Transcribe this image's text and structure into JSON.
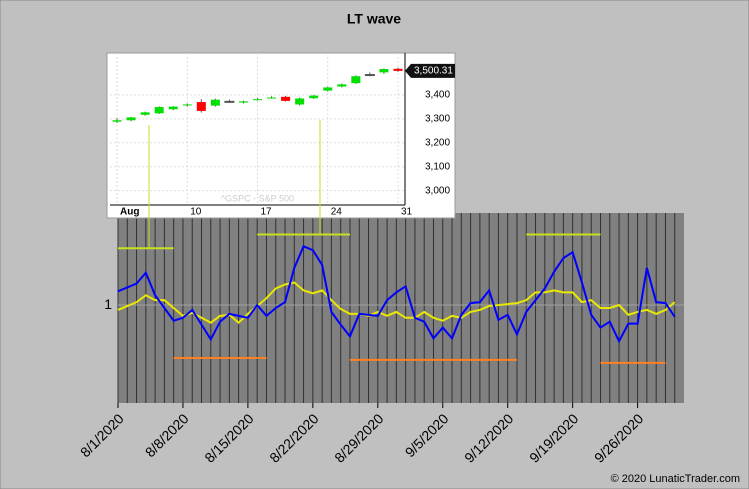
{
  "chart_data": [
    {
      "type": "line",
      "title": "LT wave",
      "x": [
        "8/1/2020",
        "8/2/2020",
        "8/3/2020",
        "8/4/2020",
        "8/5/2020",
        "8/6/2020",
        "8/7/2020",
        "8/8/2020",
        "8/9/2020",
        "8/10/2020",
        "8/11/2020",
        "8/12/2020",
        "8/13/2020",
        "8/14/2020",
        "8/15/2020",
        "8/16/2020",
        "8/17/2020",
        "8/18/2020",
        "8/19/2020",
        "8/20/2020",
        "8/21/2020",
        "8/22/2020",
        "8/23/2020",
        "8/24/2020",
        "8/25/2020",
        "8/26/2020",
        "8/27/2020",
        "8/28/2020",
        "8/29/2020",
        "8/30/2020",
        "8/31/2020",
        "9/1/2020",
        "9/2/2020",
        "9/3/2020",
        "9/4/2020",
        "9/5/2020",
        "9/6/2020",
        "9/7/2020",
        "9/8/2020",
        "9/9/2020",
        "9/10/2020",
        "9/11/2020",
        "9/12/2020",
        "9/13/2020",
        "9/14/2020",
        "9/15/2020",
        "9/16/2020",
        "9/17/2020",
        "9/18/2020",
        "9/19/2020",
        "9/20/2020",
        "9/21/2020",
        "9/22/2020",
        "9/23/2020",
        "9/24/2020",
        "9/25/2020",
        "9/26/2020",
        "9/27/2020",
        "9/28/2020",
        "9/29/2020",
        "9/30/2020"
      ],
      "series": [
        {
          "color": "#0000ff",
          "values": [
            1.14,
            1.18,
            1.22,
            1.33,
            1.1,
            0.97,
            0.84,
            0.87,
            0.95,
            0.8,
            0.65,
            0.83,
            0.91,
            0.89,
            0.87,
            1.0,
            0.89,
            0.97,
            1.03,
            1.38,
            1.6,
            1.56,
            1.41,
            0.93,
            0.8,
            0.68,
            0.91,
            0.9,
            0.89,
            1.05,
            1.13,
            1.19,
            0.87,
            0.83,
            0.66,
            0.77,
            0.66,
            0.9,
            1.02,
            1.03,
            1.15,
            0.85,
            0.9,
            0.7,
            0.93,
            1.05,
            1.17,
            1.34,
            1.48,
            1.54,
            1.23,
            0.9,
            0.77,
            0.83,
            0.63,
            0.81,
            0.81,
            1.38,
            1.03,
            1.02,
            0.88
          ]
        },
        {
          "color": "#e8e800",
          "values": [
            0.95,
            0.99,
            1.03,
            1.1,
            1.05,
            1.05,
            0.97,
            0.89,
            0.92,
            0.87,
            0.82,
            0.89,
            0.9,
            0.82,
            0.91,
            0.99,
            1.07,
            1.17,
            1.21,
            1.23,
            1.15,
            1.12,
            1.15,
            1.05,
            0.96,
            0.91,
            0.91,
            0.89,
            0.93,
            0.89,
            0.93,
            0.87,
            0.87,
            0.93,
            0.87,
            0.84,
            0.89,
            0.87,
            0.93,
            0.95,
            0.99,
            1.0,
            1.01,
            1.02,
            1.05,
            1.13,
            1.13,
            1.15,
            1.13,
            1.13,
            1.03,
            1.05,
            0.97,
            0.97,
            1.0,
            0.9,
            0.93,
            0.95,
            0.91,
            0.95,
            1.03
          ]
        }
      ],
      "levels": [
        {
          "from": "8/1/2020",
          "to": "8/7/2020",
          "value": 1.58,
          "color": "#c8e020"
        },
        {
          "from": "8/16/2020",
          "to": "8/26/2020",
          "value": 1.72,
          "color": "#c8e020"
        },
        {
          "from": "9/14/2020",
          "to": "9/22/2020",
          "value": 1.72,
          "color": "#c8e020"
        },
        {
          "from": "8/7/2020",
          "to": "8/17/2020",
          "value": 0.46,
          "color": "#ff8020"
        },
        {
          "from": "8/26/2020",
          "to": "9/13/2020",
          "value": 0.44,
          "color": "#ff8020"
        },
        {
          "from": "9/22/2020",
          "to": "9/29/2020",
          "value": 0.41,
          "color": "#ff8020"
        }
      ],
      "xlim": [
        "8/1/2020",
        "10/1/2020"
      ],
      "xticks": [
        "8/1/2020",
        "8/8/2020",
        "8/15/2020",
        "8/22/2020",
        "8/29/2020",
        "9/5/2020",
        "9/12/2020",
        "9/19/2020",
        "9/26/2020"
      ],
      "ylim": [
        0,
        1.94
      ],
      "yticks": [
        1
      ],
      "grid": true,
      "credit": "© 2020 LunaticTrader.com"
    },
    {
      "type": "candlestick",
      "watermark": "^GSPC - S&P 500",
      "categories": [
        "Aug",
        null,
        null,
        null,
        null,
        "10",
        null,
        null,
        null,
        null,
        "17",
        null,
        null,
        null,
        null,
        "24",
        null,
        null,
        null,
        null,
        "31"
      ],
      "open": [
        3288,
        3294,
        3317,
        3323,
        3340,
        3356,
        3370,
        3355,
        3373,
        3368,
        3380,
        3387,
        3392,
        3360,
        3386,
        3418,
        3435,
        3449,
        3485,
        3494,
        3509
      ],
      "high": [
        3302,
        3308,
        3330,
        3352,
        3353,
        3364,
        3382,
        3384,
        3380,
        3376,
        3386,
        3394,
        3396,
        3389,
        3400,
        3434,
        3447,
        3482,
        3494,
        3510,
        3514
      ],
      "low": [
        3283,
        3290,
        3313,
        3320,
        3336,
        3352,
        3326,
        3351,
        3366,
        3364,
        3377,
        3384,
        3372,
        3356,
        3383,
        3414,
        3431,
        3446,
        3478,
        3488,
        3496
      ],
      "close": [
        3294,
        3306,
        3327,
        3349,
        3351,
        3360,
        3333,
        3380,
        3373,
        3373,
        3382,
        3389,
        3375,
        3385,
        3397,
        3431,
        3444,
        3478,
        3485,
        3508,
        3500.31
      ],
      "up_color": "#00e000",
      "down_color": "#ff0000",
      "last_price": {
        "value": 3500.31,
        "label": "3,500.31"
      },
      "ylim": [
        2940,
        3575
      ],
      "yticks": [
        {
          "value": 3000,
          "label": "3,000"
        },
        {
          "value": 3100,
          "label": "3,100"
        },
        {
          "value": 3200,
          "label": "3,200"
        },
        {
          "value": 3300,
          "label": "3,300"
        },
        {
          "value": 3400,
          "label": "3,400"
        }
      ]
    }
  ]
}
